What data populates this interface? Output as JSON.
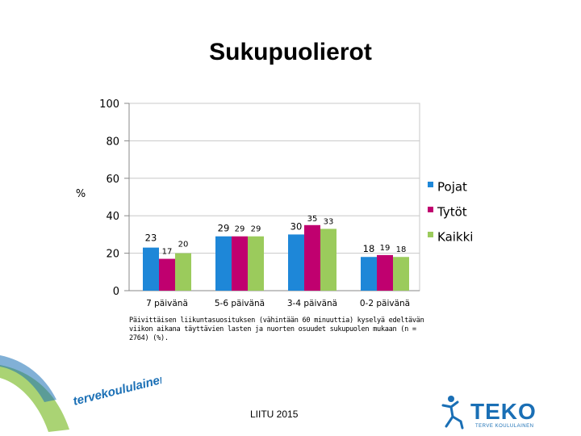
{
  "title": "Sukupuolierot",
  "ylabel": "%",
  "caption": "Päivittäisen liikuntasuosituksen (vähintään 60 minuuttia) kyselyä edeltävän viikon aikana täyttävien lasten ja nuorten osuudet sukupuolen mukaan (n = 2764) (%).",
  "source": "LIITU 2015",
  "logo_left_text": "tervekoululainen.fi",
  "logo_right_text": "TEKO",
  "logo_right_tagline": "TERVE KOULULAINEN",
  "colors": {
    "pojat": "#1e87d8",
    "tytot": "#c0006f",
    "kaikki": "#9bcb5c",
    "grid": "#c8c8c8",
    "logo_blue": "#1a6fb5"
  },
  "chart_data": {
    "type": "bar",
    "categories": [
      "7 päivänä",
      "5-6 päivänä",
      "3-4 päivänä",
      "0-2 päivänä"
    ],
    "series": [
      {
        "name": "Pojat",
        "values": [
          23,
          29,
          30,
          18
        ]
      },
      {
        "name": "Tytöt",
        "values": [
          17,
          29,
          35,
          19
        ]
      },
      {
        "name": "Kaikki",
        "values": [
          20,
          29,
          33,
          18
        ]
      }
    ],
    "ylim": [
      0,
      100
    ],
    "yticks": [
      0,
      20,
      40,
      60,
      80,
      100
    ],
    "grid": true,
    "legend": "right"
  }
}
